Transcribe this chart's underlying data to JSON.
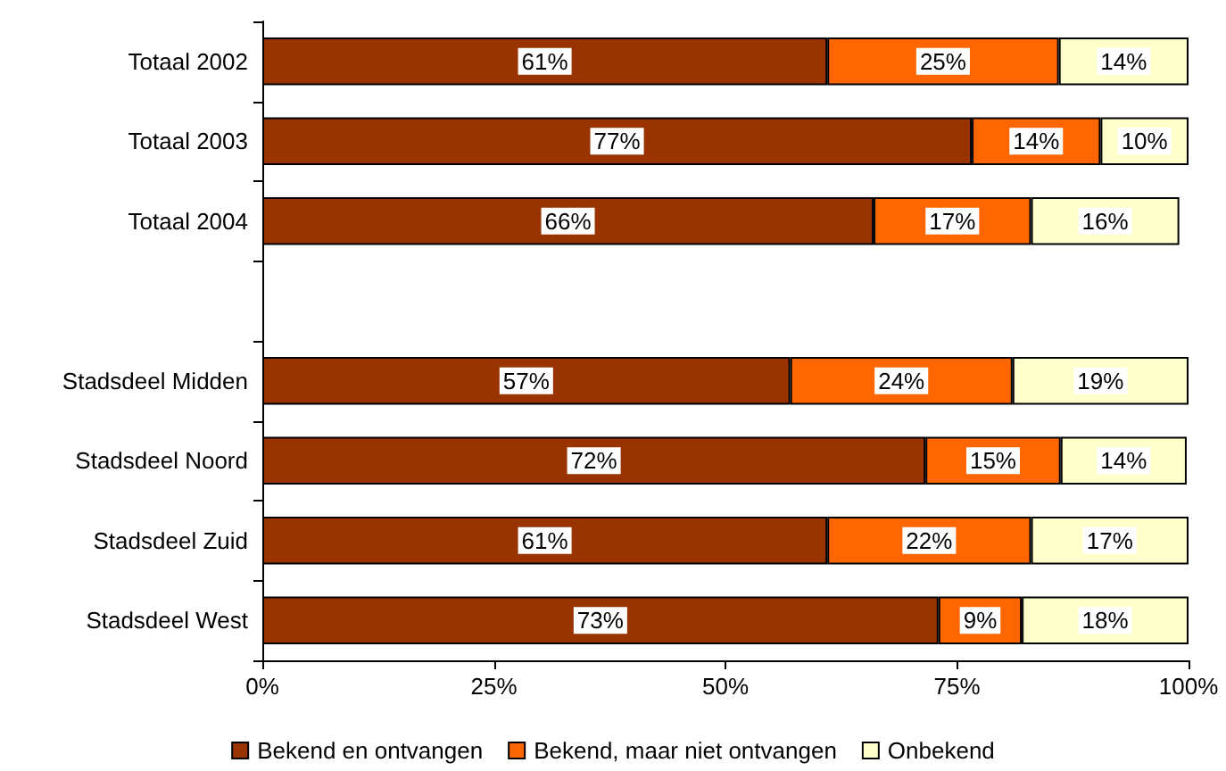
{
  "chart_data": {
    "type": "bar",
    "orientation": "horizontal",
    "stacked": true,
    "categories": [
      "Totaal 2002",
      "Totaal 2003",
      "Totaal 2004",
      null,
      "Stadsdeel Midden",
      "Stadsdeel Noord",
      "Stadsdeel Zuid",
      "Stadsdeel West"
    ],
    "series": [
      {
        "name": "Bekend en ontvangen",
        "color": "#993300",
        "values": [
          61,
          76.6,
          66,
          null,
          57,
          71.6,
          61,
          73
        ],
        "value_labels": [
          "61%",
          "77%",
          "66%",
          null,
          "57%",
          "72%",
          "61%",
          "73%"
        ]
      },
      {
        "name": "Bekend, maar niet ontvangen",
        "color": "#ff6600",
        "values": [
          25,
          13.9,
          17,
          null,
          24,
          14.6,
          22,
          9
        ],
        "value_labels": [
          "25%",
          "14%",
          "17%",
          null,
          "24%",
          "15%",
          "22%",
          "9%"
        ]
      },
      {
        "name": "Onbekend",
        "color": "#ffffcc",
        "values": [
          14,
          9.5,
          16,
          null,
          19,
          13.6,
          17,
          18
        ],
        "value_labels": [
          "14%",
          "10%",
          "16%",
          null,
          "19%",
          "14%",
          "17%",
          "18%"
        ]
      }
    ],
    "xlim": [
      0,
      100
    ],
    "xticks": [
      {
        "value": 0,
        "label": "0%"
      },
      {
        "value": 25,
        "label": "25%"
      },
      {
        "value": 50,
        "label": "50%"
      },
      {
        "value": 75,
        "label": "75%"
      },
      {
        "value": 100,
        "label": "100%"
      }
    ],
    "grid": false,
    "legend": "bottom"
  }
}
